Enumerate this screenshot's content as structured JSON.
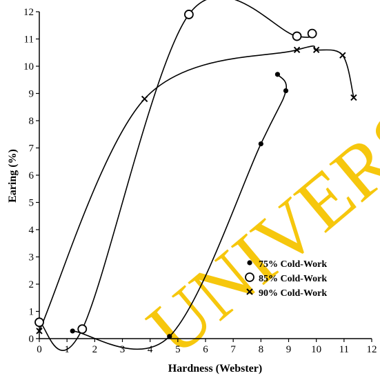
{
  "chart_data": {
    "type": "line",
    "title": "",
    "xlabel": "Hardness (Webster)",
    "ylabel": "Earing (%)",
    "xlim": [
      0,
      12
    ],
    "ylim": [
      0,
      12
    ],
    "x_ticks": [
      "0",
      "1",
      "2",
      "3",
      "4",
      "5",
      "6",
      "7",
      "8",
      "9",
      "10",
      "11",
      "12"
    ],
    "y_ticks": [
      "0",
      "1",
      "2",
      "3",
      "4",
      "5",
      "6",
      "7",
      "8",
      "9",
      "10",
      "11",
      "12"
    ],
    "grid": false,
    "legend_position": "bottom-right",
    "watermark": "UNIVERSITY OF",
    "series": [
      {
        "name": "75% Cold-Work",
        "marker": "filled-circle",
        "points": [
          [
            1.2,
            0.28
          ],
          [
            4.7,
            0.08
          ],
          [
            8.0,
            7.15
          ],
          [
            8.9,
            9.1
          ],
          [
            8.6,
            9.7
          ]
        ]
      },
      {
        "name": "85% Cold-Work",
        "marker": "open-circle",
        "points": [
          [
            0.0,
            0.6
          ],
          [
            1.55,
            0.35
          ],
          [
            5.4,
            11.9
          ],
          [
            9.3,
            11.1
          ],
          [
            9.85,
            11.2
          ]
        ]
      },
      {
        "name": "90% Cold-Work",
        "marker": "x",
        "points": [
          [
            0.0,
            0.28
          ],
          [
            3.8,
            8.8
          ],
          [
            9.3,
            10.6
          ],
          [
            10.0,
            10.6
          ],
          [
            10.95,
            10.4
          ],
          [
            11.35,
            8.85
          ]
        ]
      }
    ]
  },
  "colors": {
    "line": "#000000",
    "watermark": "#f5c400",
    "background": "#ffffff"
  }
}
